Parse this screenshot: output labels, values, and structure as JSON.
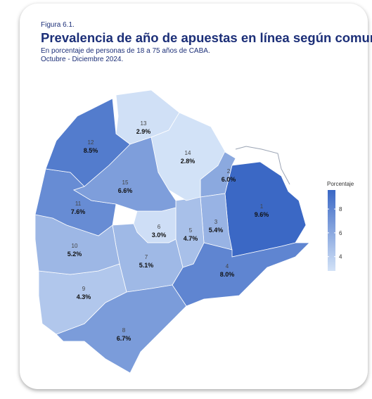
{
  "header": {
    "figure": "Figura 6.1.",
    "title": "Prevalencia de año de apuestas en línea según comuna.",
    "subtitle": [
      "En porcentaje de personas de 18 a 75 años de CABA.",
      "Octubre - Diciembre 2024."
    ]
  },
  "legend": {
    "title": "Porcentaje",
    "ticks": [
      4,
      6,
      8
    ],
    "colors": [
      "#d2e2f7",
      "#3b68c5"
    ]
  },
  "communes": [
    {
      "id": "1",
      "value": 9.6,
      "label": "9.6%"
    },
    {
      "id": "2",
      "value": 6.0,
      "label": "6.0%"
    },
    {
      "id": "3",
      "value": 5.4,
      "label": "5.4%"
    },
    {
      "id": "4",
      "value": 8.0,
      "label": "8.0%"
    },
    {
      "id": "5",
      "value": 4.7,
      "label": "4.7%"
    },
    {
      "id": "6",
      "value": 3.0,
      "label": "3.0%"
    },
    {
      "id": "7",
      "value": 5.1,
      "label": "5.1%"
    },
    {
      "id": "8",
      "value": 6.7,
      "label": "6.7%"
    },
    {
      "id": "9",
      "value": 4.3,
      "label": "4.3%"
    },
    {
      "id": "10",
      "value": 5.2,
      "label": "5.2%"
    },
    {
      "id": "11",
      "value": 7.6,
      "label": "7.6%"
    },
    {
      "id": "12",
      "value": 8.5,
      "label": "8.5%"
    },
    {
      "id": "13",
      "value": 2.9,
      "label": "2.9%"
    },
    {
      "id": "14",
      "value": 2.8,
      "label": "2.8%"
    },
    {
      "id": "15",
      "value": 6.6,
      "label": "6.6%"
    }
  ]
}
